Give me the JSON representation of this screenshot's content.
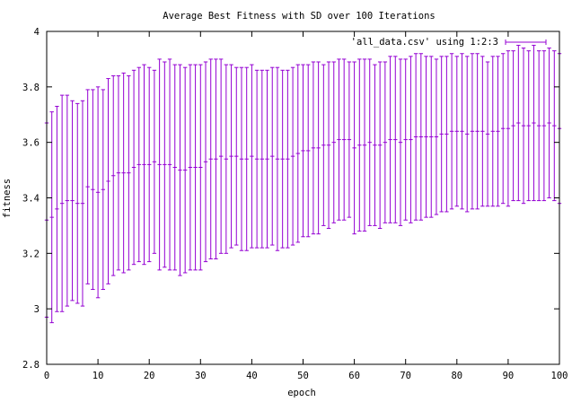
{
  "chart_data": {
    "type": "line",
    "title": "Average Best Fitness with SD over 100 Iterations",
    "xlabel": "epoch",
    "ylabel": "fitness",
    "xlim": [
      0,
      100
    ],
    "ylim": [
      2.8,
      4.0
    ],
    "x_ticks": [
      "0",
      "10",
      "20",
      "30",
      "40",
      "50",
      "60",
      "70",
      "80",
      "90",
      "100"
    ],
    "y_ticks": [
      "2.8",
      "3",
      "3.2",
      "3.4",
      "3.6",
      "3.8",
      "4"
    ],
    "grid": false,
    "legend_position": "top-right",
    "series": [
      {
        "name": "'all_data.csv' using 1:2:3",
        "style": "yerrorbars",
        "color": "#9400d3",
        "x": [
          0,
          1,
          2,
          3,
          4,
          5,
          6,
          7,
          8,
          9,
          10,
          11,
          12,
          13,
          14,
          15,
          16,
          17,
          18,
          19,
          20,
          21,
          22,
          23,
          24,
          25,
          26,
          27,
          28,
          29,
          30,
          31,
          32,
          33,
          34,
          35,
          36,
          37,
          38,
          39,
          40,
          41,
          42,
          43,
          44,
          45,
          46,
          47,
          48,
          49,
          50,
          51,
          52,
          53,
          54,
          55,
          56,
          57,
          58,
          59,
          60,
          61,
          62,
          63,
          64,
          65,
          66,
          67,
          68,
          69,
          70,
          71,
          72,
          73,
          74,
          75,
          76,
          77,
          78,
          79,
          80,
          81,
          82,
          83,
          84,
          85,
          86,
          87,
          88,
          89,
          90,
          91,
          92,
          93,
          94,
          95,
          96,
          97,
          98,
          99,
          100
        ],
        "y": [
          3.32,
          3.33,
          3.36,
          3.38,
          3.39,
          3.39,
          3.38,
          3.38,
          3.44,
          3.43,
          3.42,
          3.43,
          3.46,
          3.48,
          3.49,
          3.49,
          3.49,
          3.51,
          3.52,
          3.52,
          3.52,
          3.53,
          3.52,
          3.52,
          3.52,
          3.51,
          3.5,
          3.5,
          3.51,
          3.51,
          3.51,
          3.53,
          3.54,
          3.54,
          3.55,
          3.54,
          3.55,
          3.55,
          3.54,
          3.54,
          3.55,
          3.54,
          3.54,
          3.54,
          3.55,
          3.54,
          3.54,
          3.54,
          3.55,
          3.56,
          3.57,
          3.57,
          3.58,
          3.58,
          3.59,
          3.59,
          3.6,
          3.61,
          3.61,
          3.61,
          3.58,
          3.59,
          3.59,
          3.6,
          3.59,
          3.59,
          3.6,
          3.61,
          3.61,
          3.6,
          3.61,
          3.61,
          3.62,
          3.62,
          3.62,
          3.62,
          3.62,
          3.63,
          3.63,
          3.64,
          3.64,
          3.64,
          3.63,
          3.64,
          3.64,
          3.64,
          3.63,
          3.64,
          3.64,
          3.65,
          3.65,
          3.66,
          3.67,
          3.66,
          3.66,
          3.67,
          3.66,
          3.66,
          3.67,
          3.66,
          3.65
        ],
        "sd": [
          0.35,
          0.38,
          0.37,
          0.39,
          0.38,
          0.36,
          0.36,
          0.37,
          0.35,
          0.36,
          0.38,
          0.36,
          0.37,
          0.36,
          0.35,
          0.36,
          0.35,
          0.35,
          0.35,
          0.36,
          0.35,
          0.33,
          0.38,
          0.37,
          0.38,
          0.37,
          0.38,
          0.37,
          0.37,
          0.37,
          0.37,
          0.36,
          0.36,
          0.36,
          0.35,
          0.34,
          0.33,
          0.32,
          0.33,
          0.33,
          0.33,
          0.32,
          0.32,
          0.32,
          0.32,
          0.33,
          0.32,
          0.32,
          0.32,
          0.32,
          0.31,
          0.31,
          0.31,
          0.31,
          0.29,
          0.3,
          0.29,
          0.29,
          0.29,
          0.28,
          0.31,
          0.31,
          0.31,
          0.3,
          0.29,
          0.3,
          0.29,
          0.3,
          0.3,
          0.3,
          0.29,
          0.3,
          0.3,
          0.3,
          0.29,
          0.29,
          0.28,
          0.28,
          0.28,
          0.28,
          0.27,
          0.28,
          0.28,
          0.28,
          0.28,
          0.27,
          0.26,
          0.27,
          0.27,
          0.27,
          0.28,
          0.27,
          0.28,
          0.28,
          0.27,
          0.28,
          0.27,
          0.27,
          0.27,
          0.27,
          0.27
        ]
      }
    ]
  }
}
